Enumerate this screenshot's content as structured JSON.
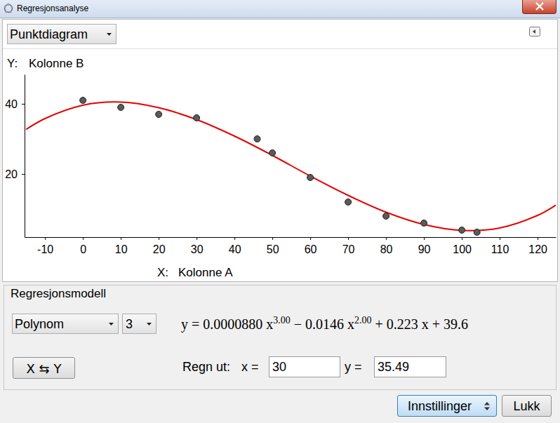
{
  "window": {
    "title": "Regresjonsanalyse"
  },
  "toolbar": {
    "plot_type": "Punktdiagram"
  },
  "chart_data": {
    "type": "scatter",
    "x_label": "Kolonne A",
    "y_label": "Kolonne B",
    "axis_prefixes": {
      "x": "X:",
      "y": "Y:"
    },
    "xlim": [
      -15.4,
      124.8
    ],
    "ylim": [
      2,
      48.4
    ],
    "xticks": [
      -10,
      0,
      10,
      20,
      30,
      40,
      50,
      60,
      70,
      80,
      90,
      100,
      110,
      120
    ],
    "yticks": [
      20,
      40
    ],
    "grid": false,
    "series": [
      {
        "type": "scatter",
        "marker": "circle",
        "color": "#5a5a5a",
        "x": [
          0,
          10,
          20,
          30,
          46,
          50,
          60,
          70,
          80,
          90,
          100,
          104
        ],
        "values": [
          41,
          39,
          37,
          36,
          30,
          26,
          19,
          12,
          8,
          6,
          4,
          3.4
        ]
      },
      {
        "type": "line",
        "line_style": "solid",
        "color": "#e60000",
        "x": [
          -15,
          -10,
          0,
          10,
          20,
          30,
          40,
          50,
          60,
          70,
          80,
          90,
          100,
          110,
          120,
          124.8
        ],
        "values": [
          32.7,
          35.8,
          39.6,
          40.5,
          38.9,
          35.5,
          30.8,
          25.3,
          19.4,
          13.9,
          9.1,
          5.6,
          3.9,
          4.6,
          8.2,
          11.1
        ]
      }
    ]
  },
  "model_panel": {
    "title": "Regresjonsmodell",
    "model": "Polynom",
    "degree": 3,
    "equation": [
      {
        "text": "y = 0.0000880 x",
        "sup": "3.00"
      },
      {
        "text": " − 0.0146 x",
        "sup": "2.00"
      },
      {
        "text": " + 0.223 x + 39.6"
      }
    ],
    "swap_button": "X ⇆ Y",
    "evaluate": {
      "label": "Regn ut:",
      "x_label": "x =",
      "x_value": 30,
      "y_label": "y =",
      "y_value": 35.49
    }
  },
  "buttons": {
    "settings": "Innstillinger",
    "close": "Lukk"
  }
}
